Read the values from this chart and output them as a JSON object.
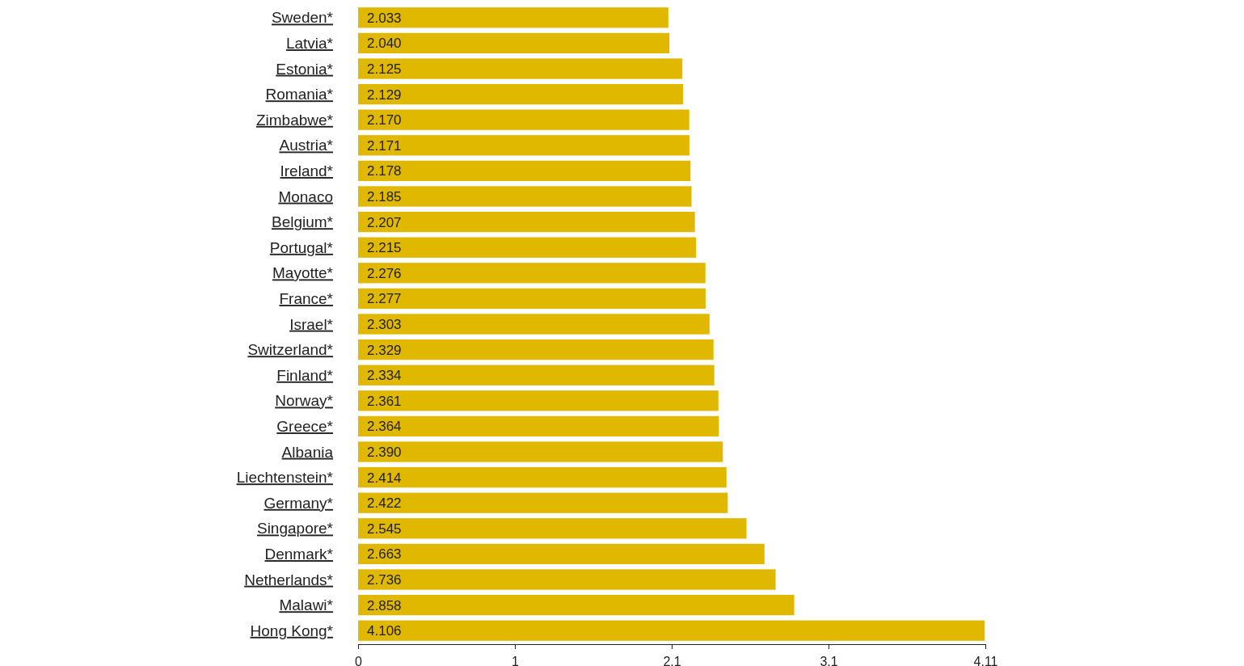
{
  "chart_data": {
    "type": "bar",
    "orientation": "horizontal",
    "categories": [
      "Sweden*",
      "Latvia*",
      "Estonia*",
      "Romania*",
      "Zimbabwe*",
      "Austria*",
      "Ireland*",
      "Monaco",
      "Belgium*",
      "Portugal*",
      "Mayotte*",
      "France*",
      "Israel*",
      "Switzerland*",
      "Finland*",
      "Norway*",
      "Greece*",
      "Albania",
      "Liechtenstein*",
      "Germany*",
      "Singapore*",
      "Denmark*",
      "Netherlands*",
      "Malawi*",
      "Hong Kong*"
    ],
    "values": [
      2.033,
      2.04,
      2.125,
      2.129,
      2.17,
      2.171,
      2.178,
      2.185,
      2.207,
      2.215,
      2.276,
      2.277,
      2.303,
      2.329,
      2.334,
      2.361,
      2.364,
      2.39,
      2.414,
      2.422,
      2.545,
      2.663,
      2.736,
      2.858,
      4.106
    ],
    "value_labels": [
      "2.033",
      "2.040",
      "2.125",
      "2.129",
      "2.170",
      "2.171",
      "2.178",
      "2.185",
      "2.207",
      "2.215",
      "2.276",
      "2.277",
      "2.303",
      "2.329",
      "2.334",
      "2.361",
      "2.364",
      "2.390",
      "2.414",
      "2.422",
      "2.545",
      "2.663",
      "2.736",
      "2.858",
      "4.106"
    ],
    "color": "#e0b800",
    "xlim": [
      0,
      4.11
    ],
    "xticks": [
      0,
      {
        "value": 1.0275,
        "label": "1"
      },
      {
        "value": 2.055,
        "label": "2.1"
      },
      {
        "value": 3.0825,
        "label": "3.1"
      },
      4.11
    ],
    "grid": false
  }
}
